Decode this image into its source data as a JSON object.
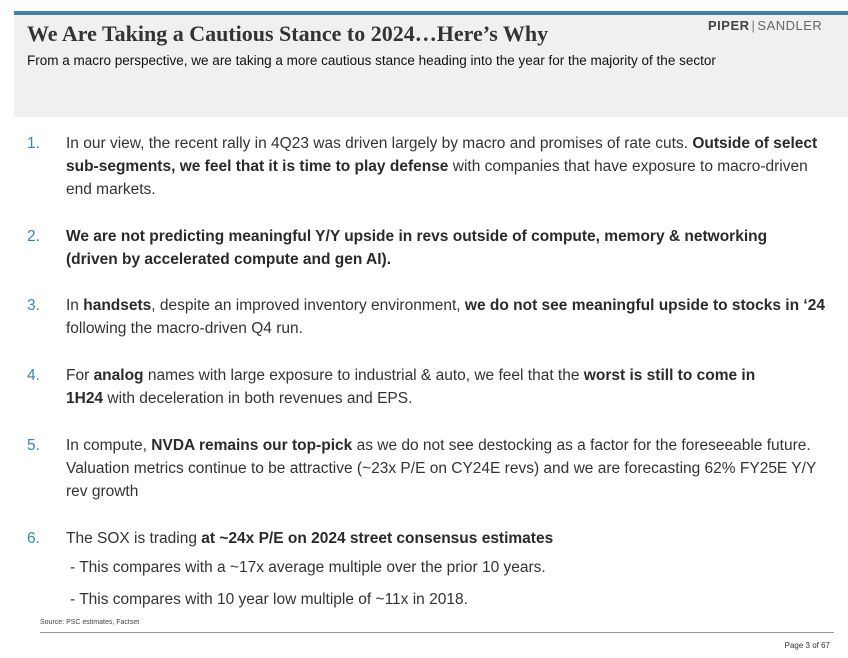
{
  "header": {
    "title": "We Are Taking a Cautious Stance to 2024…Here’s Why",
    "subtitle": "From a macro perspective, we are taking a more cautious stance heading into the year for the majority of the sector",
    "logo_left": "PIPER",
    "logo_right": "SANDLER"
  },
  "items": [
    {
      "number": "1.",
      "parts": [
        {
          "t": "In our view, the recent rally in 4Q23 was driven largely by macro and promises of rate cuts. ",
          "b": false
        },
        {
          "t": "Outside of select sub-segments, we feel that it is time to play defense",
          "b": true
        },
        {
          "t": " with companies that have exposure to macro-driven end markets.",
          "b": false
        }
      ]
    },
    {
      "number": "2.",
      "parts": [
        {
          "t": "We are not predicting meaningful Y/Y upside in revs outside of compute, memory & networking (driven by accelerated compute and gen AI).",
          "b": true
        }
      ]
    },
    {
      "number": "3.",
      "parts": [
        {
          "t": "In ",
          "b": false
        },
        {
          "t": "handsets",
          "b": true
        },
        {
          "t": ", despite an improved inventory environment, ",
          "b": false
        },
        {
          "t": "we do not see meaningful upside to stocks in ‘24",
          "b": true
        },
        {
          "t": " following the macro-driven Q4 run.",
          "b": false
        }
      ]
    },
    {
      "number": "4.",
      "parts": [
        {
          "t": "For ",
          "b": false
        },
        {
          "t": "analog",
          "b": true
        },
        {
          "t": " names with large exposure to industrial & auto, we feel that the ",
          "b": false
        },
        {
          "t": "worst is still to come in 1H24",
          "b": true
        },
        {
          "t": " with deceleration in both revenues and EPS.",
          "b": false
        }
      ]
    },
    {
      "number": "5.",
      "parts": [
        {
          "t": "In compute, ",
          "b": false
        },
        {
          "t": "NVDA remains our top-pick",
          "b": true
        },
        {
          "t": " as we do not see destocking as a factor for the foreseeable future. Valuation metrics continue to be attractive (~23x P/E on CY24E revs) and we are forecasting 62% FY25E Y/Y rev growth",
          "b": false
        }
      ]
    },
    {
      "number": "6.",
      "parts": [
        {
          "t": "The SOX is trading ",
          "b": false
        },
        {
          "t": "at ~24x P/E on 2024 street consensus estimates",
          "b": true
        }
      ],
      "subpoints": [
        "- This compares with a ~17x average multiple over the prior 10 years.",
        "- This compares with 10 year low multiple of ~11x in 2018."
      ]
    }
  ],
  "footer": {
    "source": "Source: PSC estimates, Factset",
    "page": "Page 3 of 67"
  }
}
